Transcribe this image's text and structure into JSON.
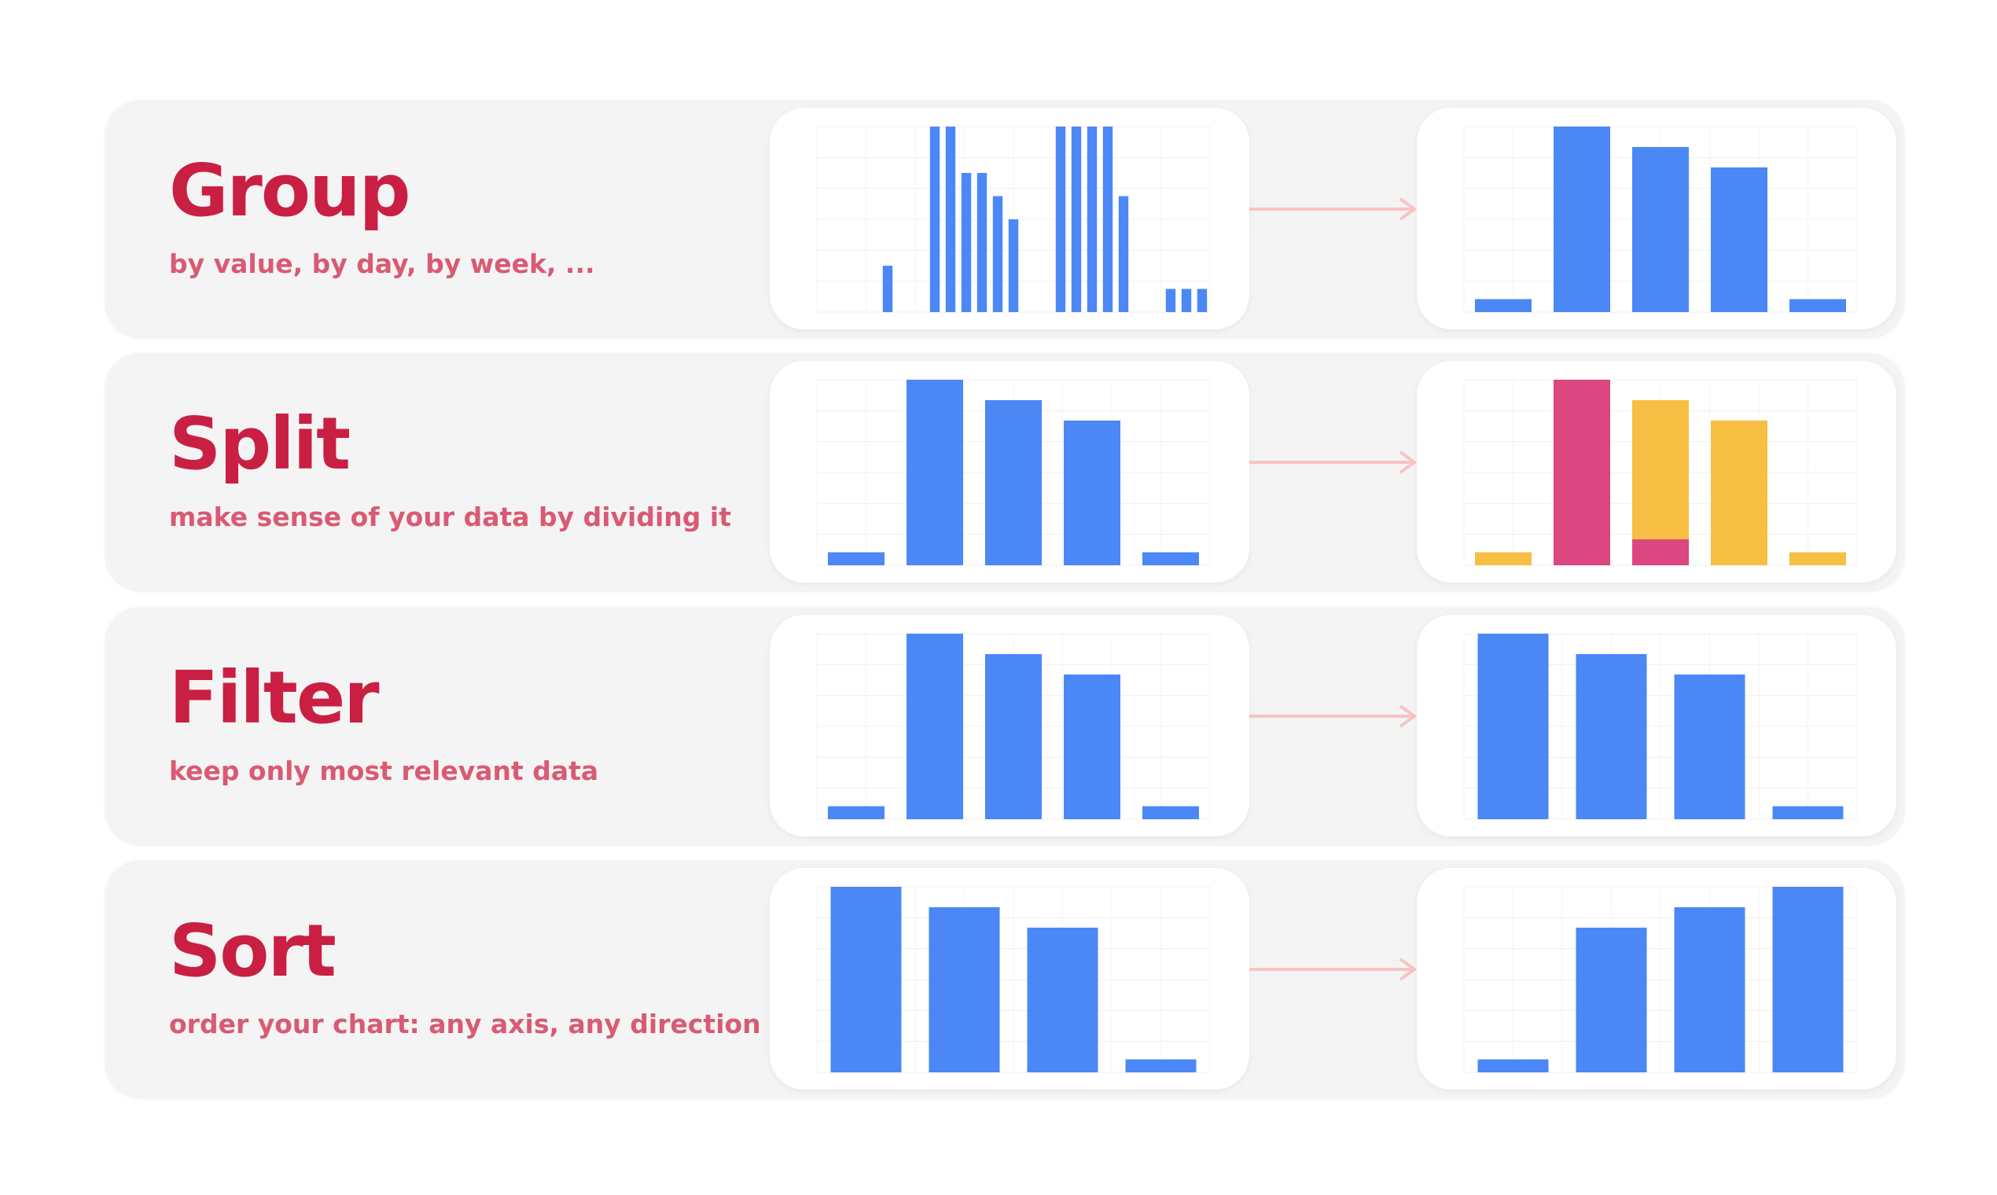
{
  "colors": {
    "title": "#c91f43",
    "subtitle": "#d95a73",
    "row_bg": "#f4f4f4",
    "card_bg": "#ffffff",
    "bar_blue": "#4b88f5",
    "bar_magenta": "#dc4780",
    "bar_yellow": "#f6bf43",
    "arrow": "#f8c3c3"
  },
  "rows": [
    {
      "title": "Group",
      "subtitle": "by value, by day, by week, ..."
    },
    {
      "title": "Split",
      "subtitle": "make sense of your data by dividing it"
    },
    {
      "title": "Filter",
      "subtitle": "keep only most relevant data"
    },
    {
      "title": "Sort",
      "subtitle": "order your chart: any axis, any direction"
    }
  ],
  "chart_data": [
    {
      "panel": "group-before",
      "type": "bar",
      "grid": true,
      "ylim": [
        0,
        1
      ],
      "series": [
        {
          "color": "#4b88f5",
          "values": [
            0,
            0,
            0,
            0,
            0.25,
            0,
            0,
            1,
            1,
            0.75,
            0.75,
            0.625,
            0.5,
            0,
            0,
            1,
            1,
            1,
            1,
            0.625,
            0,
            0,
            0.125,
            0.125,
            0.125
          ]
        }
      ]
    },
    {
      "panel": "group-after",
      "type": "bar",
      "grid": true,
      "ylim": [
        0,
        1
      ],
      "series": [
        {
          "color": "#4b88f5",
          "values": [
            0.07,
            1,
            0.89,
            0.78,
            0.07
          ]
        }
      ]
    },
    {
      "panel": "split-before",
      "type": "bar",
      "grid": true,
      "ylim": [
        0,
        1
      ],
      "series": [
        {
          "color": "#4b88f5",
          "values": [
            0.07,
            1,
            0.89,
            0.78,
            0.07
          ]
        }
      ]
    },
    {
      "panel": "split-after",
      "type": "bar",
      "stacked": true,
      "grid": true,
      "ylim": [
        0,
        1
      ],
      "series": [
        {
          "color": "#dc4780",
          "values": [
            0,
            1,
            0.14,
            0,
            0
          ]
        },
        {
          "color": "#f6bf43",
          "values": [
            0.07,
            0,
            0.75,
            0.78,
            0.07
          ]
        }
      ]
    },
    {
      "panel": "filter-before",
      "type": "bar",
      "grid": true,
      "ylim": [
        0,
        1
      ],
      "series": [
        {
          "color": "#4b88f5",
          "values": [
            0.07,
            1,
            0.89,
            0.78,
            0.07
          ]
        }
      ]
    },
    {
      "panel": "filter-after",
      "type": "bar",
      "grid": true,
      "ylim": [
        0,
        1
      ],
      "series": [
        {
          "color": "#4b88f5",
          "values": [
            1,
            0.89,
            0.78,
            0.07
          ]
        }
      ]
    },
    {
      "panel": "sort-before",
      "type": "bar",
      "grid": true,
      "ylim": [
        0,
        1
      ],
      "series": [
        {
          "color": "#4b88f5",
          "values": [
            1,
            0.89,
            0.78,
            0.07
          ]
        }
      ]
    },
    {
      "panel": "sort-after",
      "type": "bar",
      "grid": true,
      "ylim": [
        0,
        1
      ],
      "series": [
        {
          "color": "#4b88f5",
          "values": [
            0.07,
            0.78,
            0.89,
            1
          ]
        }
      ]
    }
  ]
}
